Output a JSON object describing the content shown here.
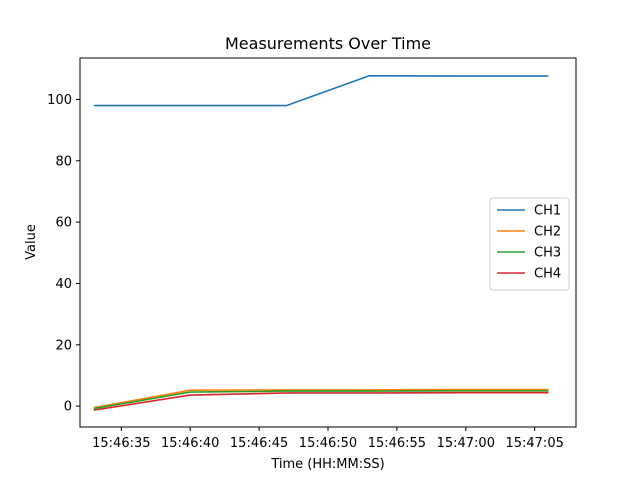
{
  "chart_data": {
    "type": "line",
    "title": "Measurements Over Time",
    "xlabel": "Time (HH:MM:SS)",
    "ylabel": "Value",
    "x": [
      "15:46:33",
      "15:46:40",
      "15:46:47",
      "15:46:53",
      "15:47:00",
      "15:47:06"
    ],
    "x_ticks": [
      "15:46:35",
      "15:46:40",
      "15:46:45",
      "15:46:50",
      "15:46:55",
      "15:47:00",
      "15:47:05"
    ],
    "xlim": [
      "15:46:32",
      "15:47:08"
    ],
    "y_ticks": [
      0,
      20,
      40,
      60,
      80,
      100
    ],
    "ylim": [
      -6.8,
      113.5
    ],
    "grid": false,
    "legend_position": "center-right",
    "series": [
      {
        "name": "CH1",
        "color": "#1f77b4",
        "values": [
          98.0,
          98.0,
          98.0,
          107.7,
          107.6,
          107.6
        ]
      },
      {
        "name": "CH2",
        "color": "#ff7f0e",
        "values": [
          -0.5,
          5.2,
          5.3,
          5.3,
          5.4,
          5.4
        ]
      },
      {
        "name": "CH3",
        "color": "#2ca02c",
        "values": [
          -0.8,
          4.6,
          4.9,
          4.9,
          5.0,
          5.0
        ]
      },
      {
        "name": "CH4",
        "color": "#d62728",
        "values": [
          -1.3,
          3.6,
          4.3,
          4.3,
          4.4,
          4.4
        ]
      }
    ]
  }
}
